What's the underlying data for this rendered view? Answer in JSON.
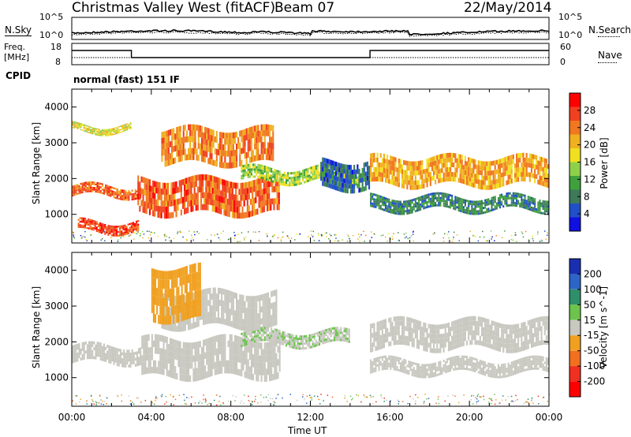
{
  "header": {
    "title": "Christmas Valley West (fitACF)",
    "beam": "Beam 07",
    "date": "22/May/2014"
  },
  "noise_panel": {
    "left_label": "N.Sky",
    "right_label": "N.Search",
    "left_ticks": [
      "10^5",
      "10^0"
    ],
    "right_ticks": [
      "10^5",
      "10^0"
    ]
  },
  "freq_panel": {
    "left_label_1": "Freq.",
    "left_label_2": "[MHz]",
    "right_label": "Nave",
    "left_ticks": [
      "18",
      "8"
    ],
    "right_ticks": [
      "60",
      "0"
    ]
  },
  "cpid_panel": {
    "label": "CPID",
    "text": "normal (fast) 151 IF"
  },
  "xaxis": {
    "label": "Time UT",
    "ticks": [
      "00:00",
      "04:00",
      "08:00",
      "12:00",
      "16:00",
      "20:00",
      "00:00"
    ]
  },
  "chart_data": [
    {
      "type": "heatmap",
      "name": "power",
      "ylabel": "Slant Range [km]",
      "yticks": [
        "1000",
        "2000",
        "3000",
        "4000"
      ],
      "ylim": [
        200,
        4500
      ],
      "xlim": [
        "00:00",
        "24:00"
      ],
      "colorbar_label": "Power [dB]",
      "colorbar_ticks": [
        "4",
        "8",
        "12",
        "16",
        "20",
        "24",
        "28"
      ],
      "colorbar_colors": [
        "#1010e0",
        "#2050c8",
        "#3d7a5a",
        "#3fa03c",
        "#8fd04a",
        "#f0e020",
        "#f0b020",
        "#f07820",
        "#f04020",
        "#ff0000"
      ],
      "bands": [
        {
          "start_h": 0.0,
          "end_h": 3.5,
          "range_km": [
            1500,
            1800
          ],
          "dB": 26
        },
        {
          "start_h": 0.3,
          "end_h": 3.4,
          "range_km": [
            500,
            800
          ],
          "dB": 27
        },
        {
          "start_h": 0.0,
          "end_h": 3.0,
          "range_km": [
            3300,
            3500
          ],
          "dB": 18
        },
        {
          "start_h": 3.3,
          "end_h": 10.5,
          "range_km": [
            1000,
            2000
          ],
          "dB": 26
        },
        {
          "start_h": 4.5,
          "end_h": 10.2,
          "range_km": [
            2400,
            3400
          ],
          "dB": 24
        },
        {
          "start_h": 8.5,
          "end_h": 14.5,
          "range_km": [
            1900,
            2300
          ],
          "dB": 16
        },
        {
          "start_h": 12.5,
          "end_h": 15.0,
          "range_km": [
            1700,
            2500
          ],
          "dB": 8
        },
        {
          "start_h": 15.0,
          "end_h": 24.0,
          "range_km": [
            1800,
            2600
          ],
          "dB": 22
        },
        {
          "start_h": 15.0,
          "end_h": 24.0,
          "range_km": [
            1100,
            1500
          ],
          "dB": 10
        }
      ]
    },
    {
      "type": "heatmap",
      "name": "velocity",
      "ylabel": "Slant Range [km]",
      "yticks": [
        "1000",
        "2000",
        "3000",
        "4000"
      ],
      "ylim": [
        200,
        4500
      ],
      "xlim": [
        "00:00",
        "24:00"
      ],
      "colorbar_label": "Velocity [m s^-1]",
      "colorbar_ticks": [
        "200",
        "100",
        "50",
        "15",
        "-15",
        "-50",
        "-100",
        "-200"
      ],
      "colorbar_colors": [
        "#1a2fb0",
        "#2d64c8",
        "#2f8f6a",
        "#6cc44c",
        "#c8c8c0",
        "#f0a020",
        "#f07020",
        "#f03020",
        "#ff0000"
      ],
      "bands": [
        {
          "start_h": 0.0,
          "end_h": 3.5,
          "range_km": [
            1400,
            1900
          ],
          "m_s": 0
        },
        {
          "start_h": 3.5,
          "end_h": 10.5,
          "range_km": [
            1000,
            2100
          ],
          "m_s": 0
        },
        {
          "start_h": 4.5,
          "end_h": 10.3,
          "range_km": [
            2400,
            3400
          ],
          "m_s": 0
        },
        {
          "start_h": 4.0,
          "end_h": 6.5,
          "range_km": [
            2600,
            4100
          ],
          "m_s": -40
        },
        {
          "start_h": 8.5,
          "end_h": 14.0,
          "range_km": [
            1900,
            2300
          ],
          "m_s": 20
        },
        {
          "start_h": 15.0,
          "end_h": 24.0,
          "range_km": [
            1800,
            2600
          ],
          "m_s": 0
        },
        {
          "start_h": 15.0,
          "end_h": 24.0,
          "range_km": [
            1100,
            1500
          ],
          "m_s": 0
        }
      ]
    }
  ]
}
